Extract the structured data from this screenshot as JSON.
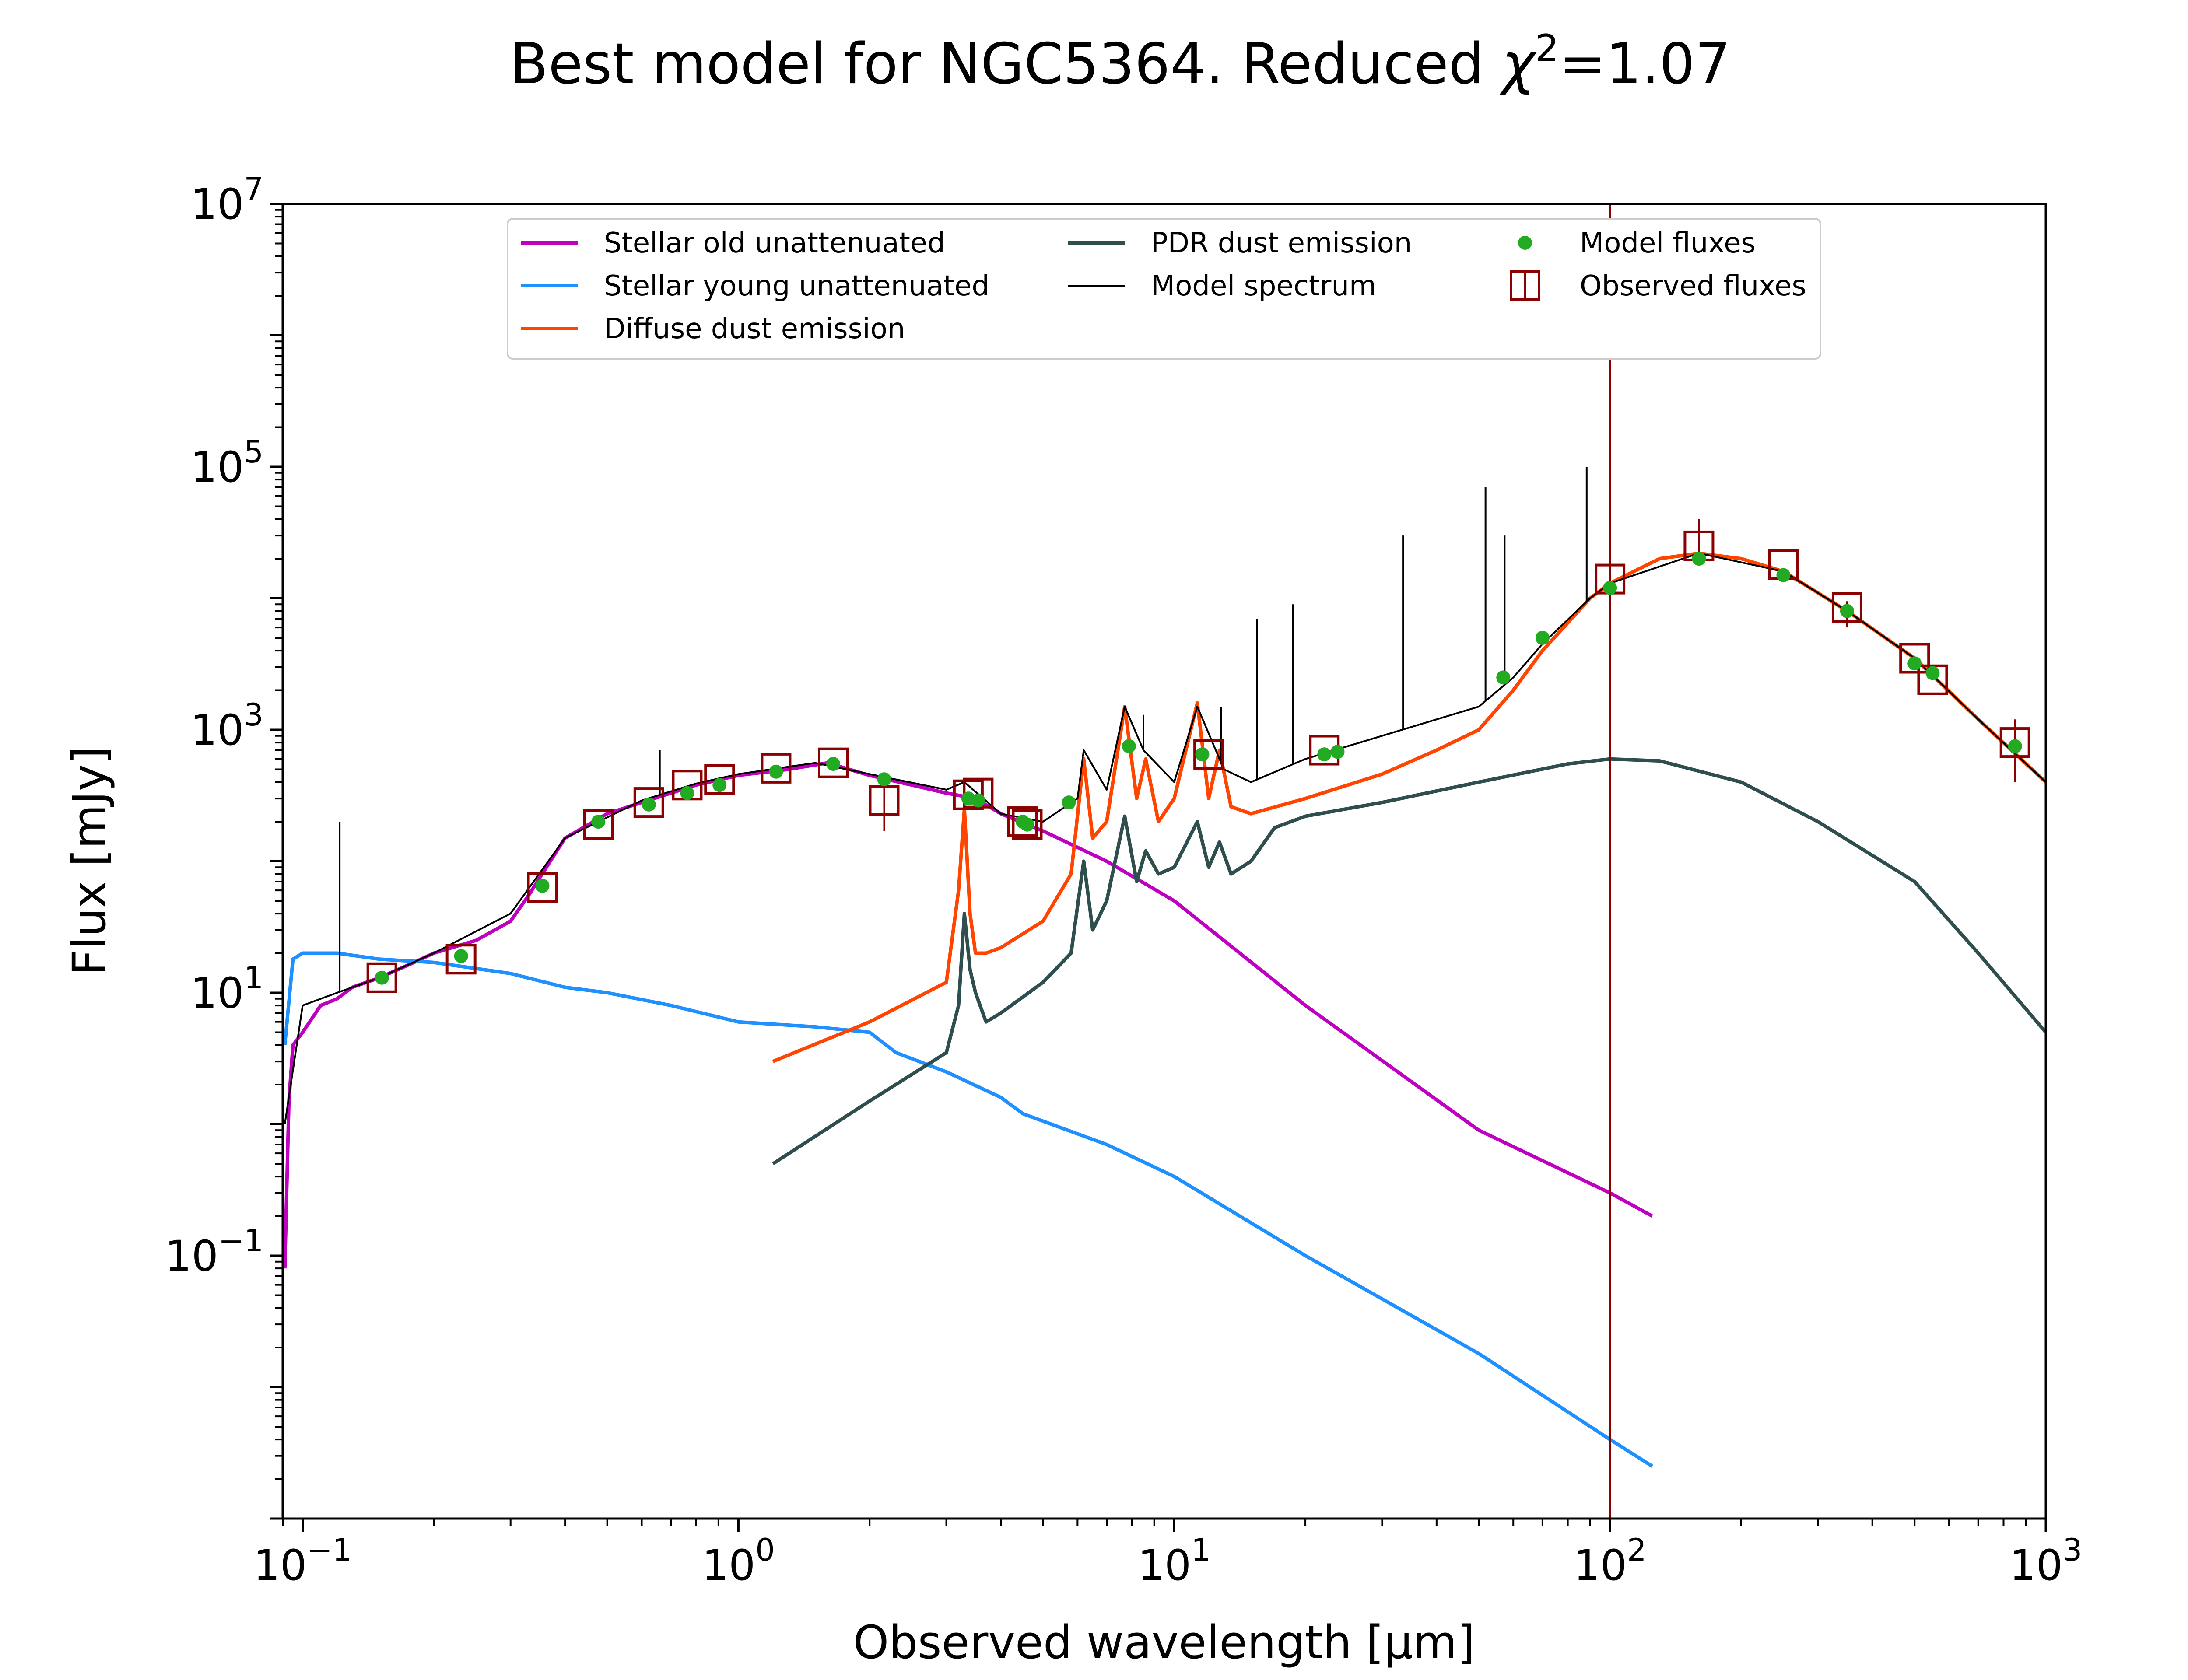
{
  "chart_data": {
    "type": "line",
    "title": "Best model for NGC5364. Reduced χ²=1.07",
    "title_parts": {
      "main": "Best model for NGC5364. Reduced ",
      "chi_symbol": "χ",
      "chi_exponent": "2",
      "chi_value": "=1.07"
    },
    "xlabel": "Observed wavelength [μm]",
    "ylabel": "Flux [mJy]",
    "xscale": "log",
    "yscale": "log",
    "xlim": [
      0.09,
      1000
    ],
    "ylim": [
      0.001,
      10000000
    ],
    "grid": false,
    "legend_position": "top-center",
    "x_ticks": [
      {
        "value": 0.1,
        "base": "10",
        "exp": "−1"
      },
      {
        "value": 1,
        "base": "10",
        "exp": "0"
      },
      {
        "value": 10,
        "base": "10",
        "exp": "1"
      },
      {
        "value": 100,
        "base": "10",
        "exp": "2"
      },
      {
        "value": 1000,
        "base": "10",
        "exp": "3"
      }
    ],
    "y_ticks": [
      {
        "value": 0.1,
        "base": "10",
        "exp": "−1"
      },
      {
        "value": 10,
        "base": "10",
        "exp": "1"
      },
      {
        "value": 1000,
        "base": "10",
        "exp": "3"
      },
      {
        "value": 100000,
        "base": "10",
        "exp": "5"
      },
      {
        "value": 10000000,
        "base": "10",
        "exp": "7"
      }
    ],
    "vertical_line": {
      "x": 100,
      "color": "#8b0000"
    },
    "legend": [
      {
        "label": "Stellar old unattenuated",
        "color": "#c000c0",
        "kind": "line"
      },
      {
        "label": "Stellar young unattenuated",
        "color": "#1e90ff",
        "kind": "line"
      },
      {
        "label": "Diffuse dust emission",
        "color": "#ff4500",
        "kind": "line"
      },
      {
        "label": "PDR dust emission",
        "color": "#2f4f4f",
        "kind": "line"
      },
      {
        "label": "Model spectrum",
        "color": "#000000",
        "kind": "thin-line"
      },
      {
        "label": "Model fluxes",
        "color": "#22aa22",
        "kind": "dot"
      },
      {
        "label": "Observed fluxes",
        "color": "#8b0000",
        "kind": "square"
      }
    ],
    "series": [
      {
        "name": "Stellar old unattenuated",
        "color": "#c000c0",
        "points": [
          [
            0.091,
            0.08
          ],
          [
            0.093,
            1.5
          ],
          [
            0.095,
            4
          ],
          [
            0.1,
            5
          ],
          [
            0.11,
            8
          ],
          [
            0.12,
            9
          ],
          [
            0.13,
            11
          ],
          [
            0.15,
            13
          ],
          [
            0.18,
            17
          ],
          [
            0.2,
            20
          ],
          [
            0.25,
            25
          ],
          [
            0.3,
            35
          ],
          [
            0.33,
            55
          ],
          [
            0.37,
            100
          ],
          [
            0.4,
            150
          ],
          [
            0.5,
            230
          ],
          [
            0.6,
            280
          ],
          [
            0.8,
            380
          ],
          [
            1.0,
            450
          ],
          [
            1.3,
            500
          ],
          [
            1.6,
            560
          ],
          [
            2.0,
            450
          ],
          [
            2.5,
            380
          ],
          [
            3.0,
            330
          ],
          [
            3.5,
            300
          ],
          [
            4.0,
            230
          ],
          [
            5.0,
            170
          ],
          [
            7.0,
            100
          ],
          [
            10.0,
            50
          ],
          [
            20.0,
            8
          ],
          [
            50.0,
            0.9
          ],
          [
            100.0,
            0.3
          ],
          [
            125.0,
            0.2
          ]
        ]
      },
      {
        "name": "Stellar young unattenuated",
        "color": "#1e90ff",
        "points": [
          [
            0.091,
            4
          ],
          [
            0.095,
            18
          ],
          [
            0.1,
            20
          ],
          [
            0.12,
            20
          ],
          [
            0.15,
            18
          ],
          [
            0.2,
            17
          ],
          [
            0.3,
            14
          ],
          [
            0.4,
            11
          ],
          [
            0.5,
            10
          ],
          [
            0.7,
            8
          ],
          [
            1.0,
            6
          ],
          [
            1.5,
            5.5
          ],
          [
            2.0,
            5
          ],
          [
            2.3,
            3.5
          ],
          [
            3.0,
            2.5
          ],
          [
            4.0,
            1.6
          ],
          [
            4.5,
            1.2
          ],
          [
            7.0,
            0.7
          ],
          [
            10.0,
            0.4
          ],
          [
            20.0,
            0.1
          ],
          [
            50.0,
            0.018
          ],
          [
            100.0,
            0.004
          ],
          [
            125.0,
            0.0025
          ]
        ]
      },
      {
        "name": "Diffuse dust emission",
        "color": "#ff4500",
        "points": [
          [
            1.2,
            3
          ],
          [
            2.0,
            6
          ],
          [
            3.0,
            12
          ],
          [
            3.2,
            60
          ],
          [
            3.3,
            250
          ],
          [
            3.4,
            40
          ],
          [
            3.5,
            20
          ],
          [
            3.7,
            20
          ],
          [
            4.0,
            22
          ],
          [
            5.0,
            35
          ],
          [
            5.8,
            80
          ],
          [
            6.2,
            600
          ],
          [
            6.5,
            150
          ],
          [
            7.0,
            200
          ],
          [
            7.7,
            1500
          ],
          [
            8.2,
            300
          ],
          [
            8.6,
            600
          ],
          [
            9.2,
            200
          ],
          [
            10.0,
            300
          ],
          [
            11.3,
            1600
          ],
          [
            12.0,
            300
          ],
          [
            12.7,
            700
          ],
          [
            13.5,
            260
          ],
          [
            15.0,
            230
          ],
          [
            20.0,
            300
          ],
          [
            30.0,
            460
          ],
          [
            40.0,
            700
          ],
          [
            50.0,
            1000
          ],
          [
            60.0,
            2000
          ],
          [
            70.0,
            4000
          ],
          [
            90.0,
            10000
          ],
          [
            100.0,
            13000
          ],
          [
            130.0,
            20000
          ],
          [
            160.0,
            22000
          ],
          [
            200.0,
            20000
          ],
          [
            250.0,
            16000
          ],
          [
            350.0,
            8000
          ],
          [
            500.0,
            3500
          ],
          [
            700.0,
            1200
          ],
          [
            1000.0,
            400
          ]
        ]
      },
      {
        "name": "PDR dust emission",
        "color": "#2f4f4f",
        "points": [
          [
            1.2,
            0.5
          ],
          [
            2.0,
            1.5
          ],
          [
            3.0,
            3.5
          ],
          [
            3.2,
            8
          ],
          [
            3.3,
            40
          ],
          [
            3.4,
            15
          ],
          [
            3.5,
            10
          ],
          [
            3.7,
            6
          ],
          [
            4.0,
            7
          ],
          [
            5.0,
            12
          ],
          [
            5.8,
            20
          ],
          [
            6.2,
            100
          ],
          [
            6.5,
            30
          ],
          [
            7.0,
            50
          ],
          [
            7.7,
            220
          ],
          [
            8.2,
            70
          ],
          [
            8.6,
            120
          ],
          [
            9.2,
            80
          ],
          [
            10.0,
            90
          ],
          [
            11.3,
            200
          ],
          [
            12.0,
            90
          ],
          [
            12.7,
            140
          ],
          [
            13.5,
            80
          ],
          [
            15.0,
            100
          ],
          [
            17.0,
            180
          ],
          [
            20.0,
            220
          ],
          [
            30.0,
            280
          ],
          [
            50.0,
            400
          ],
          [
            80.0,
            550
          ],
          [
            100.0,
            600
          ],
          [
            130.0,
            580
          ],
          [
            200.0,
            400
          ],
          [
            300.0,
            200
          ],
          [
            500.0,
            70
          ],
          [
            700.0,
            20
          ],
          [
            1000.0,
            5
          ]
        ]
      },
      {
        "name": "Model spectrum",
        "color": "#000000",
        "points": [
          [
            0.091,
            1
          ],
          [
            0.1,
            8
          ],
          [
            0.12,
            10
          ],
          [
            0.15,
            13
          ],
          [
            0.2,
            20
          ],
          [
            0.3,
            40
          ],
          [
            0.4,
            150
          ],
          [
            0.6,
            290
          ],
          [
            0.8,
            390
          ],
          [
            1.0,
            460
          ],
          [
            1.5,
            560
          ],
          [
            2.0,
            460
          ],
          [
            3.0,
            350
          ],
          [
            3.3,
            400
          ],
          [
            4.0,
            230
          ],
          [
            5.0,
            200
          ],
          [
            6.0,
            300
          ],
          [
            6.2,
            700
          ],
          [
            7.0,
            350
          ],
          [
            7.7,
            1500
          ],
          [
            8.5,
            700
          ],
          [
            10.0,
            400
          ],
          [
            11.3,
            1500
          ],
          [
            13.0,
            500
          ],
          [
            15.0,
            400
          ],
          [
            20.0,
            600
          ],
          [
            30.0,
            900
          ],
          [
            40.0,
            1200
          ],
          [
            50.0,
            1500
          ],
          [
            60.0,
            2500
          ],
          [
            70.0,
            4500
          ],
          [
            90.0,
            10000
          ],
          [
            100.0,
            13000
          ],
          [
            160.0,
            22000
          ],
          [
            250.0,
            16000
          ],
          [
            350.0,
            8000
          ],
          [
            500.0,
            3500
          ],
          [
            700.0,
            1200
          ],
          [
            1000.0,
            400
          ]
        ]
      }
    ],
    "emission_lines": [
      [
        0.1216,
        200
      ],
      [
        0.66,
        700
      ],
      [
        3.3,
        300
      ],
      [
        8.5,
        1300
      ],
      [
        12.8,
        1500
      ],
      [
        15.5,
        7000
      ],
      [
        18.7,
        9000
      ],
      [
        33.5,
        30000
      ],
      [
        51.8,
        70000
      ],
      [
        57.3,
        30000
      ],
      [
        88.4,
        100000
      ]
    ],
    "model_fluxes": [
      [
        0.152,
        13
      ],
      [
        0.231,
        19
      ],
      [
        0.355,
        65
      ],
      [
        0.477,
        200
      ],
      [
        0.623,
        270
      ],
      [
        0.763,
        330
      ],
      [
        0.905,
        380
      ],
      [
        1.22,
        480
      ],
      [
        1.65,
        550
      ],
      [
        2.16,
        420
      ],
      [
        3.37,
        300
      ],
      [
        3.55,
        290
      ],
      [
        4.49,
        200
      ],
      [
        4.6,
        190
      ],
      [
        5.73,
        280
      ],
      [
        7.87,
        750
      ],
      [
        11.6,
        650
      ],
      [
        22.1,
        650
      ],
      [
        23.7,
        680
      ],
      [
        56.9,
        2500
      ],
      [
        70.0,
        5000
      ],
      [
        100.0,
        12000
      ],
      [
        160.0,
        20000
      ],
      [
        250.0,
        15000
      ],
      [
        350.0,
        8000
      ],
      [
        500.0,
        3200
      ],
      [
        550.0,
        2700
      ],
      [
        850.0,
        750
      ]
    ],
    "observed_fluxes": [
      [
        0.152,
        13,
        13,
        13
      ],
      [
        0.231,
        18,
        18,
        18
      ],
      [
        0.355,
        63,
        63,
        63
      ],
      [
        0.477,
        190,
        190,
        190
      ],
      [
        0.623,
        280,
        280,
        280
      ],
      [
        0.763,
        380,
        380,
        380
      ],
      [
        0.905,
        420,
        420,
        420
      ],
      [
        1.22,
        510,
        510,
        510
      ],
      [
        1.65,
        560,
        560,
        560
      ],
      [
        2.16,
        290,
        170,
        400
      ],
      [
        3.37,
        320,
        320,
        320
      ],
      [
        3.55,
        330,
        330,
        330
      ],
      [
        4.49,
        200,
        200,
        200
      ],
      [
        4.6,
        190,
        190,
        190
      ],
      [
        12.0,
        650,
        650,
        650
      ],
      [
        22.1,
        700,
        700,
        700
      ],
      [
        100.0,
        14000,
        14000,
        14000
      ],
      [
        160.0,
        25000,
        18000,
        40000
      ],
      [
        250.0,
        18000,
        18000,
        18000
      ],
      [
        350.0,
        8500,
        6000,
        9500
      ],
      [
        500.0,
        3500,
        3500,
        3500
      ],
      [
        550.0,
        2400,
        2400,
        2400
      ],
      [
        850.0,
        800,
        400,
        1200
      ]
    ]
  }
}
